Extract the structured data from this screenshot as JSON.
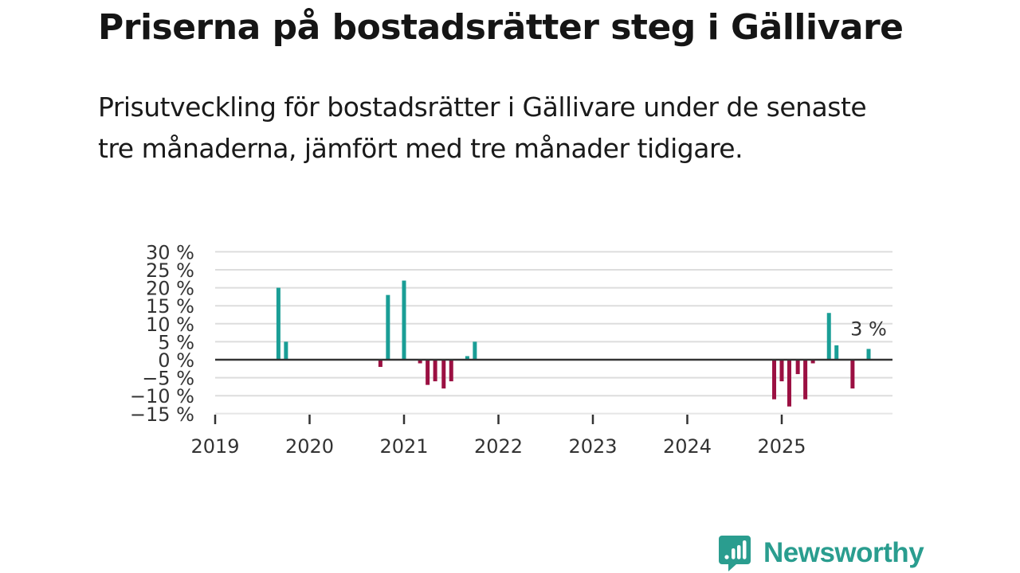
{
  "title": "Priserna på bostadsrätter steg i Gällivare",
  "subtitle": "Prisutveckling för bostadsrätter i Gällivare under de senaste tre månaderna, jämfört med tre månader tidigare.",
  "brand": {
    "name": "Newsworthy",
    "color": "#2a9d8f"
  },
  "colors": {
    "positive": "#1a9e96",
    "negative": "#9b1042",
    "grid": "#dddddd",
    "zero": "#333333"
  },
  "chart_data": {
    "type": "bar",
    "ylim": [
      -15,
      30
    ],
    "yticks": [
      30,
      25,
      20,
      15,
      10,
      5,
      0,
      -5,
      -10,
      -15
    ],
    "ytick_labels": [
      "30 %",
      "25 %",
      "20 %",
      "15 %",
      "10 %",
      "5 %",
      "0 %",
      "−5 %",
      "−10 %",
      "−15 %"
    ],
    "xlim": [
      2019.0,
      2026.2
    ],
    "xticks": [
      2019,
      2020,
      2021,
      2022,
      2023,
      2024,
      2025
    ],
    "xtick_labels": [
      "2019",
      "2020",
      "2021",
      "2022",
      "2023",
      "2024",
      "2025"
    ],
    "annotation": {
      "text": "3 %",
      "x": 2025.92,
      "value": 3
    },
    "bars": [
      {
        "x": 2019.67,
        "value": 20
      },
      {
        "x": 2019.75,
        "value": 5
      },
      {
        "x": 2020.75,
        "value": -2
      },
      {
        "x": 2020.83,
        "value": 18
      },
      {
        "x": 2021.0,
        "value": 22
      },
      {
        "x": 2021.17,
        "value": -1
      },
      {
        "x": 2021.25,
        "value": -7
      },
      {
        "x": 2021.33,
        "value": -6
      },
      {
        "x": 2021.42,
        "value": -8
      },
      {
        "x": 2021.5,
        "value": -6
      },
      {
        "x": 2021.67,
        "value": 1
      },
      {
        "x": 2021.75,
        "value": 5
      },
      {
        "x": 2024.92,
        "value": -11
      },
      {
        "x": 2025.0,
        "value": -6
      },
      {
        "x": 2025.08,
        "value": -13
      },
      {
        "x": 2025.17,
        "value": -4
      },
      {
        "x": 2025.25,
        "value": -11
      },
      {
        "x": 2025.33,
        "value": -1
      },
      {
        "x": 2025.5,
        "value": 13
      },
      {
        "x": 2025.58,
        "value": 4
      },
      {
        "x": 2025.75,
        "value": -8
      },
      {
        "x": 2025.92,
        "value": 3
      }
    ]
  }
}
